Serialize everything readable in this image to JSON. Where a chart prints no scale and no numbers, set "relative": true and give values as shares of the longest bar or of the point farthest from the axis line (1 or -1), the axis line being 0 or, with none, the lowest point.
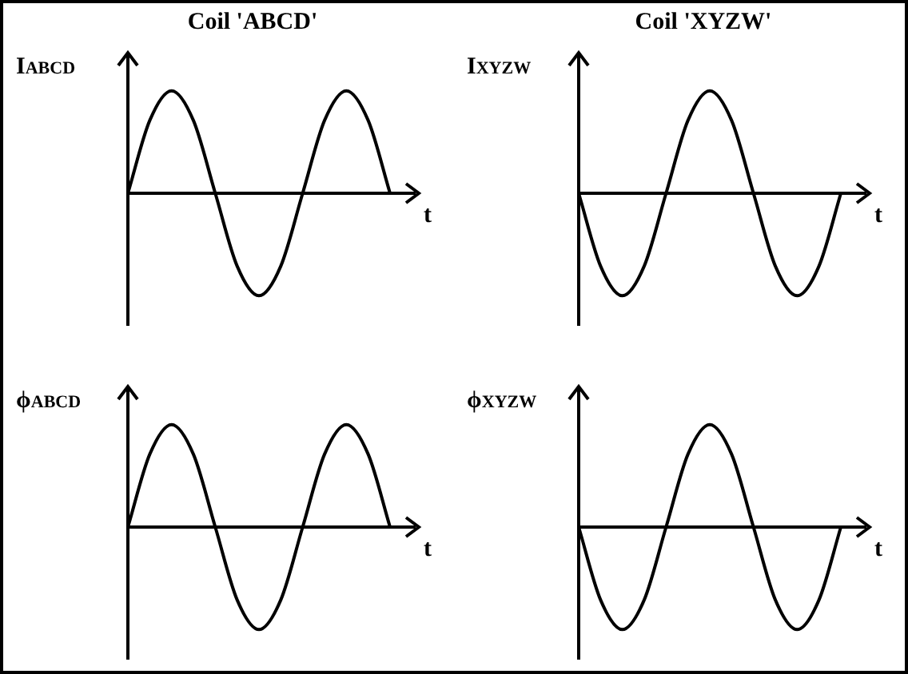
{
  "chart_data": [
    {
      "type": "line",
      "title": "Coil 'ABCD'",
      "ylabel": "I$_{ABCD}$",
      "xlabel": "t",
      "relative": true,
      "tick_labels": false,
      "marker": "none",
      "categories": [
        null,
        null,
        null,
        null,
        null,
        null,
        null,
        null,
        null,
        null,
        null,
        null,
        null
      ],
      "series": [
        {
          "color": "#000000",
          "values": [
            0,
            0.71,
            1,
            0.71,
            0,
            -0.71,
            -1,
            -0.71,
            0,
            0.71,
            1,
            0.71,
            0
          ]
        }
      ]
    },
    {
      "type": "line",
      "title": "Coil 'XYZW'",
      "ylabel": "I$_{XYZW}$",
      "xlabel": "t",
      "relative": true,
      "tick_labels": false,
      "marker": "none",
      "categories": [
        null,
        null,
        null,
        null,
        null,
        null,
        null,
        null,
        null,
        null,
        null,
        null,
        null
      ],
      "series": [
        {
          "color": "#000000",
          "values": [
            0,
            -0.71,
            -1,
            -0.71,
            0,
            0.71,
            1,
            0.71,
            0,
            -0.71,
            -1,
            -0.71,
            0
          ]
        }
      ]
    },
    {
      "type": "line",
      "ylabel": "ϕ$_{ABCD}$",
      "xlabel": "t",
      "relative": true,
      "tick_labels": false,
      "marker": "none",
      "categories": [
        null,
        null,
        null,
        null,
        null,
        null,
        null,
        null,
        null,
        null,
        null,
        null,
        null
      ],
      "series": [
        {
          "color": "#000000",
          "values": [
            0,
            0.71,
            1,
            0.71,
            0,
            -0.71,
            -1,
            -0.71,
            0,
            0.71,
            1,
            0.71,
            0
          ]
        }
      ]
    },
    {
      "type": "line",
      "ylabel": "ϕ$_{XYZW}$",
      "xlabel": "t",
      "relative": true,
      "tick_labels": false,
      "marker": "none",
      "categories": [
        null,
        null,
        null,
        null,
        null,
        null,
        null,
        null,
        null,
        null,
        null,
        null,
        null
      ],
      "series": [
        {
          "color": "#000000",
          "values": [
            0,
            -0.71,
            -1,
            -0.71,
            0,
            0.71,
            1,
            0.71,
            0,
            -0.71,
            -1,
            -0.71,
            0
          ]
        }
      ]
    }
  ]
}
